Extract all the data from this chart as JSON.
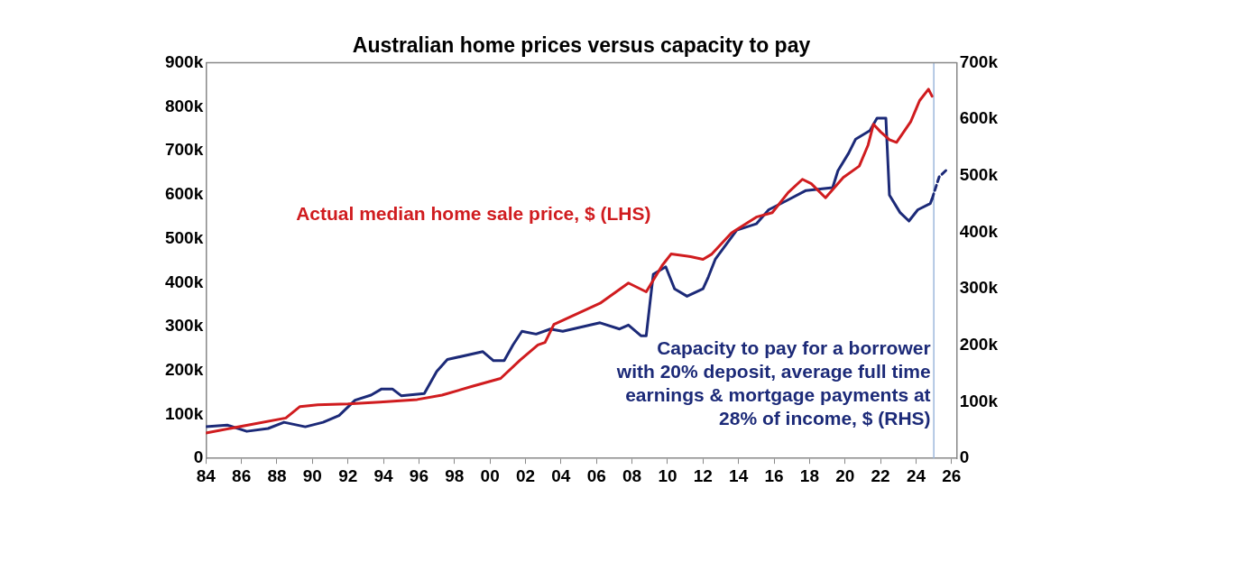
{
  "chart_data": {
    "type": "line",
    "title": "Australian home prices versus capacity to pay",
    "xlim": [
      1984,
      2026.3
    ],
    "xticks": [
      {
        "value": 1984,
        "label": "84"
      },
      {
        "value": 1986,
        "label": "86"
      },
      {
        "value": 1988,
        "label": "88"
      },
      {
        "value": 1990,
        "label": "90"
      },
      {
        "value": 1992,
        "label": "92"
      },
      {
        "value": 1994,
        "label": "94"
      },
      {
        "value": 1996,
        "label": "96"
      },
      {
        "value": 1998,
        "label": "98"
      },
      {
        "value": 2000,
        "label": "00"
      },
      {
        "value": 2002,
        "label": "02"
      },
      {
        "value": 2004,
        "label": "04"
      },
      {
        "value": 2006,
        "label": "06"
      },
      {
        "value": 2008,
        "label": "08"
      },
      {
        "value": 2010,
        "label": "10"
      },
      {
        "value": 2012,
        "label": "12"
      },
      {
        "value": 2014,
        "label": "14"
      },
      {
        "value": 2016,
        "label": "16"
      },
      {
        "value": 2018,
        "label": "18"
      },
      {
        "value": 2020,
        "label": "20"
      },
      {
        "value": 2022,
        "label": "22"
      },
      {
        "value": 2024,
        "label": "24"
      },
      {
        "value": 2026,
        "label": "26"
      }
    ],
    "ylim": [
      0,
      900000
    ],
    "yticks": [
      0,
      {
        "value": 100000,
        "label": "100k"
      },
      {
        "value": 200000,
        "label": "200k"
      },
      {
        "value": 300000,
        "label": "300k"
      },
      {
        "value": 400000,
        "label": "400k"
      },
      {
        "value": 500000,
        "label": "500k"
      },
      {
        "value": 600000,
        "label": "600k"
      },
      {
        "value": 700000,
        "label": "700k"
      },
      {
        "value": 800000,
        "label": "800k"
      },
      {
        "value": 900000,
        "label": "900k"
      }
    ],
    "y2lim": [
      0,
      700000
    ],
    "y2ticks": [
      0,
      {
        "value": 100000,
        "label": "100k"
      },
      {
        "value": 200000,
        "label": "200k"
      },
      {
        "value": 300000,
        "label": "300k"
      },
      {
        "value": 400000,
        "label": "400k"
      },
      {
        "value": 500000,
        "label": "500k"
      },
      {
        "value": 600000,
        "label": "600k"
      },
      {
        "value": 700000,
        "label": "700k"
      }
    ],
    "grid": false,
    "legend": false,
    "marker": "none",
    "ref_lines": [
      {
        "axis": "x",
        "value": 2025,
        "color": "#9db8dc"
      }
    ],
    "series": [
      {
        "name": "Actual median home sale price, $ (LHS)",
        "color": "#d01c1f",
        "line_style": "solid",
        "axis": "y",
        "x": [
          1984.0,
          1988.5,
          1989.3,
          1990.3,
          1992.0,
          1993.8,
          1995.9,
          1997.3,
          1999.0,
          2000.6,
          2001.7,
          2002.7,
          2003.1,
          2003.6,
          2006.2,
          2007.8,
          2008.8,
          2009.7,
          2010.2,
          2011.3,
          2012.0,
          2012.5,
          2013.6,
          2015.0,
          2015.9,
          2016.8,
          2017.6,
          2018.1,
          2018.9,
          2019.9,
          2020.8,
          2021.3,
          2021.6,
          2022.0,
          2022.5,
          2022.9,
          2023.7,
          2024.2,
          2024.7,
          2024.9
        ],
        "values": [
          58000,
          92000,
          118000,
          122000,
          124000,
          128000,
          134000,
          144000,
          164000,
          182000,
          224000,
          258000,
          264000,
          305000,
          353000,
          399000,
          379000,
          439000,
          465000,
          459000,
          453000,
          465000,
          513000,
          549000,
          559000,
          605000,
          635000,
          625000,
          593000,
          639000,
          665000,
          713000,
          760000,
          743000,
          725000,
          719000,
          766000,
          814000,
          840000,
          824000
        ]
      },
      {
        "name": "Capacity to pay for a borrower with 20% deposit, average full time earnings & mortgage payments at 28% of income, $ (RHS)",
        "color": "#1c2a78",
        "line_style": "solid",
        "axis": "y2",
        "x": [
          1984.0,
          1985.2,
          1986.3,
          1987.5,
          1988.4,
          1989.6,
          1990.6,
          1991.5,
          1992.4,
          1993.3,
          1993.9,
          1994.5,
          1995.0,
          1996.3,
          1997.0,
          1997.6,
          1999.6,
          2000.2,
          2000.8,
          2001.3,
          2001.8,
          2002.6,
          2003.4,
          2004.1,
          2006.2,
          2007.3,
          2007.8,
          2008.5,
          2008.8,
          2009.2,
          2009.9,
          2010.4,
          2011.1,
          2012.0,
          2012.3,
          2012.7,
          2013.9,
          2015.0,
          2015.7,
          2016.7,
          2017.8,
          2019.3,
          2019.6,
          2020.2,
          2020.6,
          2021.4,
          2021.8,
          2022.3,
          2022.5,
          2023.1,
          2023.6,
          2024.1,
          2024.8,
          2024.9
        ],
        "values": [
          56000,
          59000,
          48000,
          53000,
          64000,
          56000,
          64000,
          76000,
          103000,
          112000,
          123000,
          123000,
          111000,
          115000,
          154000,
          175000,
          189000,
          173000,
          173000,
          201000,
          225000,
          220000,
          229000,
          225000,
          240000,
          229000,
          236000,
          217000,
          217000,
          326000,
          339000,
          300000,
          287000,
          300000,
          321000,
          353000,
          404000,
          415000,
          440000,
          456000,
          474000,
          479000,
          509000,
          540000,
          565000,
          580000,
          602000,
          602000,
          466000,
          435000,
          420000,
          440000,
          451000,
          459000
        ]
      },
      {
        "color": "#1c2a78",
        "line_style": "dashed",
        "axis": "y2",
        "x": [
          2024.9,
          2025.3,
          2025.8
        ],
        "values": [
          459000,
          498000,
          513000
        ]
      }
    ]
  }
}
